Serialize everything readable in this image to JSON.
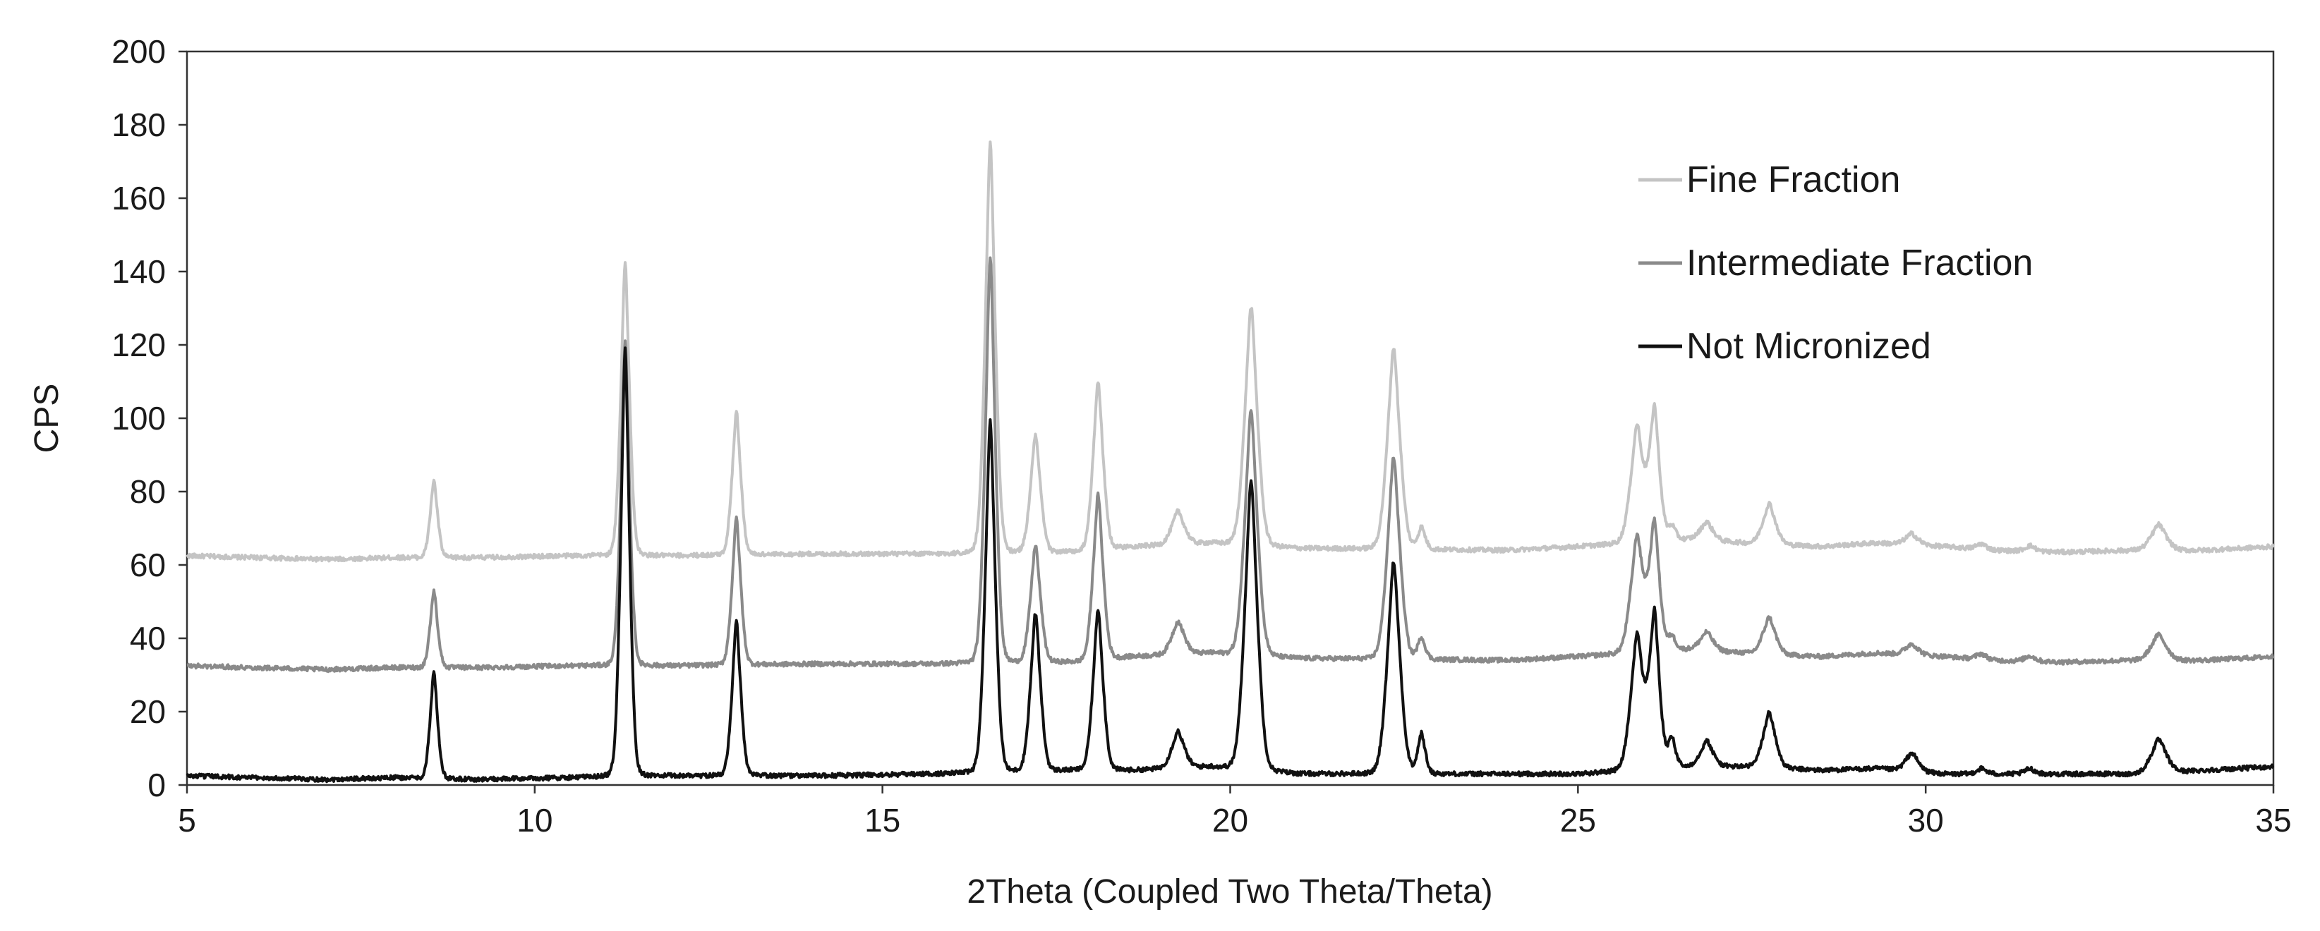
{
  "chart_data": {
    "type": "line",
    "xlabel": "2Theta (Coupled Two Theta/Theta)",
    "ylabel": "CPS",
    "xlim": [
      5,
      35
    ],
    "ylim": [
      0,
      200
    ],
    "xticks": [
      5,
      10,
      15,
      20,
      25,
      30,
      35
    ],
    "yticks": [
      0,
      20,
      40,
      60,
      80,
      100,
      120,
      140,
      160,
      180,
      200
    ],
    "grid": false,
    "legend_position": "top-right",
    "series": [
      {
        "name": "Fine Fraction",
        "color": "#c4c4c4",
        "baseline": [
          [
            5,
            62.5
          ],
          [
            7,
            61.5
          ],
          [
            8,
            62
          ],
          [
            9.2,
            62
          ],
          [
            10.5,
            62.5
          ],
          [
            12,
            62.5
          ],
          [
            14,
            63
          ],
          [
            15.8,
            63
          ],
          [
            17.8,
            63.5
          ],
          [
            18.6,
            65
          ],
          [
            19.7,
            66
          ],
          [
            21,
            64.5
          ],
          [
            24,
            64
          ],
          [
            25,
            65
          ],
          [
            26.6,
            67
          ],
          [
            27.4,
            66
          ],
          [
            28.5,
            65
          ],
          [
            29.3,
            66
          ],
          [
            30.3,
            65
          ],
          [
            31,
            64
          ],
          [
            32,
            63.5
          ],
          [
            33,
            64
          ],
          [
            34,
            64
          ],
          [
            35,
            65
          ]
        ],
        "peaks": [
          [
            8.55,
            21,
            0.06
          ],
          [
            11.3,
            80,
            0.07
          ],
          [
            12.9,
            39,
            0.07
          ],
          [
            16.55,
            112,
            0.08
          ],
          [
            17.2,
            32,
            0.08
          ],
          [
            18.1,
            46,
            0.08
          ],
          [
            19.25,
            9,
            0.1
          ],
          [
            20.3,
            65,
            0.1
          ],
          [
            22.35,
            55,
            0.1
          ],
          [
            22.75,
            6,
            0.06
          ],
          [
            25.85,
            32,
            0.1
          ],
          [
            26.1,
            36,
            0.08
          ],
          [
            26.35,
            4,
            0.06
          ],
          [
            26.85,
            5,
            0.1
          ],
          [
            27.75,
            11,
            0.1
          ],
          [
            29.8,
            3,
            0.1
          ],
          [
            30.8,
            1.5,
            0.08
          ],
          [
            31.5,
            1.5,
            0.08
          ],
          [
            33.35,
            7,
            0.12
          ]
        ]
      },
      {
        "name": "Intermediate Fraction",
        "color": "#8a8a8a",
        "baseline": [
          [
            5,
            32.5
          ],
          [
            7,
            31.5
          ],
          [
            8,
            32
          ],
          [
            9.2,
            32
          ],
          [
            10.5,
            32.5
          ],
          [
            12,
            32.5
          ],
          [
            14,
            33
          ],
          [
            15.8,
            33
          ],
          [
            17.8,
            33.5
          ],
          [
            18.6,
            35
          ],
          [
            19.7,
            36
          ],
          [
            21,
            34.5
          ],
          [
            24,
            34
          ],
          [
            25,
            35
          ],
          [
            26.6,
            37
          ],
          [
            27.4,
            36
          ],
          [
            28.5,
            35
          ],
          [
            29.3,
            36
          ],
          [
            30.3,
            35
          ],
          [
            31,
            34
          ],
          [
            32,
            33.5
          ],
          [
            33,
            34
          ],
          [
            34,
            34
          ],
          [
            35,
            35
          ]
        ],
        "peaks": [
          [
            8.55,
            21,
            0.06
          ],
          [
            11.3,
            88,
            0.07
          ],
          [
            12.9,
            40,
            0.07
          ],
          [
            16.55,
            111,
            0.08
          ],
          [
            17.2,
            32,
            0.08
          ],
          [
            18.1,
            45,
            0.08
          ],
          [
            19.25,
            9,
            0.1
          ],
          [
            20.3,
            67,
            0.1
          ],
          [
            22.35,
            55,
            0.1
          ],
          [
            22.75,
            6,
            0.06
          ],
          [
            25.85,
            32,
            0.1
          ],
          [
            26.1,
            35,
            0.08
          ],
          [
            26.35,
            4,
            0.06
          ],
          [
            26.85,
            5,
            0.1
          ],
          [
            27.75,
            10,
            0.1
          ],
          [
            29.8,
            3,
            0.1
          ],
          [
            30.8,
            1.5,
            0.08
          ],
          [
            31.5,
            1.5,
            0.08
          ],
          [
            33.35,
            7,
            0.12
          ]
        ]
      },
      {
        "name": "Not Micronized",
        "color": "#111111",
        "baseline": [
          [
            5,
            2.5
          ],
          [
            7,
            1.5
          ],
          [
            8,
            2
          ],
          [
            9.2,
            1.5
          ],
          [
            10.5,
            2
          ],
          [
            12,
            2.5
          ],
          [
            14,
            2.5
          ],
          [
            15.8,
            3
          ],
          [
            17.8,
            4
          ],
          [
            18.6,
            4
          ],
          [
            19.7,
            5
          ],
          [
            21,
            3
          ],
          [
            24,
            3
          ],
          [
            25,
            3
          ],
          [
            26.6,
            5
          ],
          [
            27.4,
            5
          ],
          [
            28.5,
            4
          ],
          [
            29.3,
            4.5
          ],
          [
            30.3,
            3
          ],
          [
            31,
            3
          ],
          [
            32,
            3
          ],
          [
            33,
            3
          ],
          [
            34,
            4
          ],
          [
            35,
            5
          ]
        ],
        "peaks": [
          [
            8.55,
            29,
            0.06
          ],
          [
            11.3,
            117,
            0.07
          ],
          [
            12.9,
            42,
            0.07
          ],
          [
            16.55,
            96,
            0.08
          ],
          [
            17.2,
            43,
            0.08
          ],
          [
            18.1,
            44,
            0.08
          ],
          [
            19.25,
            10,
            0.1
          ],
          [
            20.3,
            79,
            0.1
          ],
          [
            22.35,
            58,
            0.1
          ],
          [
            22.75,
            11,
            0.06
          ],
          [
            25.85,
            37,
            0.1
          ],
          [
            26.1,
            42,
            0.08
          ],
          [
            26.35,
            8,
            0.06
          ],
          [
            26.85,
            7,
            0.1
          ],
          [
            27.75,
            15,
            0.1
          ],
          [
            29.8,
            5,
            0.1
          ],
          [
            30.8,
            1.5,
            0.08
          ],
          [
            31.5,
            1.5,
            0.08
          ],
          [
            33.35,
            9,
            0.12
          ]
        ]
      }
    ]
  }
}
